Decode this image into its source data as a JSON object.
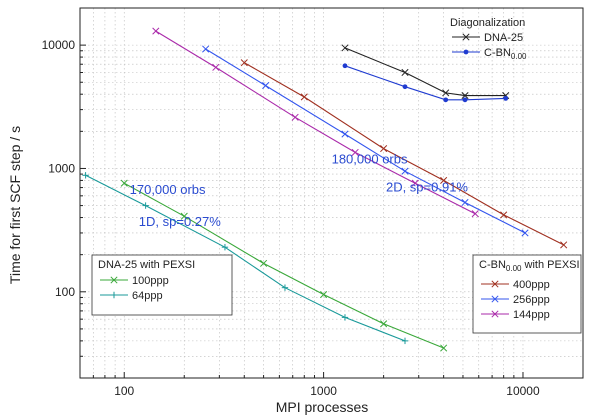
{
  "chart_data": {
    "type": "line",
    "xlabel": "MPI processes",
    "ylabel": "Time for first SCF step / s",
    "xscale": "log",
    "yscale": "log",
    "xlim": [
      60,
      20000
    ],
    "ylim": [
      20,
      20000
    ],
    "x_ticks": [
      100,
      1000,
      10000
    ],
    "y_ticks": [
      100,
      1000,
      10000
    ],
    "x_tick_labels": [
      "100",
      "1000",
      "10000"
    ],
    "y_tick_labels": [
      "100",
      "1000",
      "10000"
    ],
    "grid": "dotted",
    "legends": [
      {
        "id": "diag",
        "title": "Diagonalization",
        "placement": "top-right",
        "entries": [
          {
            "series": "diag-dna",
            "label_main": "DNA-25",
            "label_sub": ""
          },
          {
            "series": "diag-cbn",
            "label_main": "C-BN",
            "label_sub": "0.00"
          }
        ]
      },
      {
        "id": "dna-pexsi",
        "title": "DNA-25 with PEXSI",
        "placement": "bottom-left",
        "entries": [
          {
            "series": "dna-100ppp",
            "label_main": "100ppp",
            "label_sub": ""
          },
          {
            "series": "dna-64ppp",
            "label_main": "64ppp",
            "label_sub": ""
          }
        ]
      },
      {
        "id": "cbn-pexsi",
        "title_main": "C-BN",
        "title_sub": "0.00",
        "title_rest": " with PEXSI",
        "placement": "bottom-right",
        "entries": [
          {
            "series": "cbn-400ppp",
            "label_main": "400ppp",
            "label_sub": ""
          },
          {
            "series": "cbn-256ppp",
            "label_main": "256ppp",
            "label_sub": ""
          },
          {
            "series": "cbn-144ppp",
            "label_main": "144ppp",
            "label_sub": ""
          }
        ]
      }
    ],
    "annotations": [
      {
        "id": "ann-180k",
        "text": "180,000 orbs",
        "x": 1700,
        "y": 1100
      },
      {
        "id": "ann-2d",
        "text": "2D, sp=0.91%",
        "x": 3300,
        "y": 650
      },
      {
        "id": "ann-170k",
        "text": "170,000 orbs",
        "x": 165,
        "y": 620
      },
      {
        "id": "ann-1d",
        "text": "1D, sp=0.27%",
        "x": 190,
        "y": 340
      }
    ],
    "series": [
      {
        "id": "diag-dna",
        "color": "#222222",
        "marker": "x",
        "x": [
          1280,
          2560,
          4096,
          5120,
          8192
        ],
        "y": [
          9500,
          6000,
          4100,
          3900,
          3900
        ]
      },
      {
        "id": "diag-cbn",
        "color": "#1f3bd0",
        "marker": "dot",
        "x": [
          1280,
          2560,
          4096,
          5120,
          8192
        ],
        "y": [
          6800,
          4600,
          3600,
          3600,
          3700
        ]
      },
      {
        "id": "dna-100ppp",
        "color": "#3aa83a",
        "marker": "x",
        "x": [
          100,
          200,
          500,
          1000,
          2000,
          4000
        ],
        "y": [
          760,
          410,
          170,
          95,
          55,
          35
        ]
      },
      {
        "id": "dna-64ppp",
        "color": "#1a9a9a",
        "marker": "plus",
        "x": [
          64,
          128,
          320,
          640,
          1280,
          2560
        ],
        "y": [
          880,
          500,
          230,
          108,
          62,
          40
        ]
      },
      {
        "id": "cbn-400ppp",
        "color": "#a03020",
        "marker": "x",
        "x": [
          400,
          800,
          2000,
          4000,
          8000,
          16000
        ],
        "y": [
          7200,
          3800,
          1450,
          800,
          420,
          240
        ]
      },
      {
        "id": "cbn-256ppp",
        "color": "#3355ee",
        "marker": "x",
        "x": [
          256,
          512,
          1280,
          2560,
          5120,
          10240
        ],
        "y": [
          9300,
          4700,
          1900,
          950,
          530,
          300
        ]
      },
      {
        "id": "cbn-144ppp",
        "color": "#aa2aaa",
        "marker": "x",
        "x": [
          144,
          288,
          720,
          1440,
          2880,
          5760
        ],
        "y": [
          13000,
          6600,
          2600,
          1350,
          760,
          430
        ]
      }
    ]
  }
}
